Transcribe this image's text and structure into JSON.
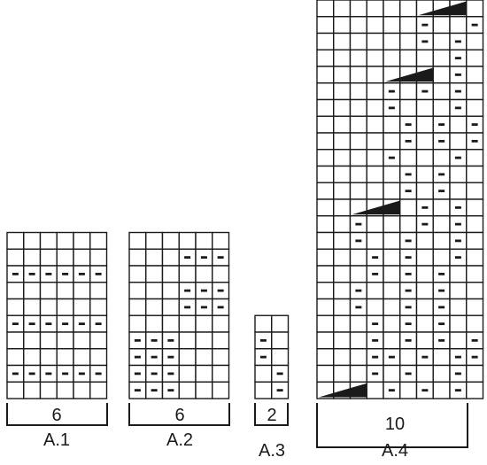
{
  "diagrams": [
    {
      "id": "a1",
      "label": "A.1",
      "stitch_count": "6",
      "rows": [
        "      ",
        "      ",
        "------",
        "      ",
        "      ",
        "------",
        "      ",
        "      ",
        "------",
        "      "
      ],
      "wedges": []
    },
    {
      "id": "a2",
      "label": "A.2",
      "stitch_count": "6",
      "rows": [
        "      ",
        "   ---",
        "      ",
        "   ---",
        "   ---",
        "      ",
        "---   ",
        "---   ",
        "---   ",
        "---   "
      ],
      "wedges": []
    },
    {
      "id": "a3",
      "label": "A.3",
      "stitch_count": "2",
      "rows": [
        "  ",
        "- ",
        "- ",
        " -",
        " -"
      ],
      "wedges": []
    },
    {
      "id": "a4",
      "label": "A.4",
      "stitch_count": "10",
      "rows": [
        "        - ",
        "        - ",
        "        - ",
        "      wwww",
        "      -  -",
        "      - - ",
        "        - ",
        "    www - ",
        "    - - - ",
        "    -   - ",
        "     - - -",
        "     - - -",
        "    -   - ",
        "     - -  ",
        "     - -  ",
        "  wwww- - ",
        "  -   - - ",
        "  -  -  - ",
        "   - -  - ",
        "   - - -  ",
        "  -  - -  ",
        "  -  - -  ",
        "   - - -  ",
        "   - - - -",
        "   -- - --",
        "   - -  - ",
        "wwww- - - "
      ],
      "wedges": [
        {
          "row": 3,
          "start": 6,
          "span": 3
        },
        {
          "row": 7,
          "start": 4,
          "span": 3
        },
        {
          "row": 15,
          "start": 2,
          "span": 3
        },
        {
          "row": 26,
          "start": 0,
          "span": 3
        }
      ]
    }
  ]
}
